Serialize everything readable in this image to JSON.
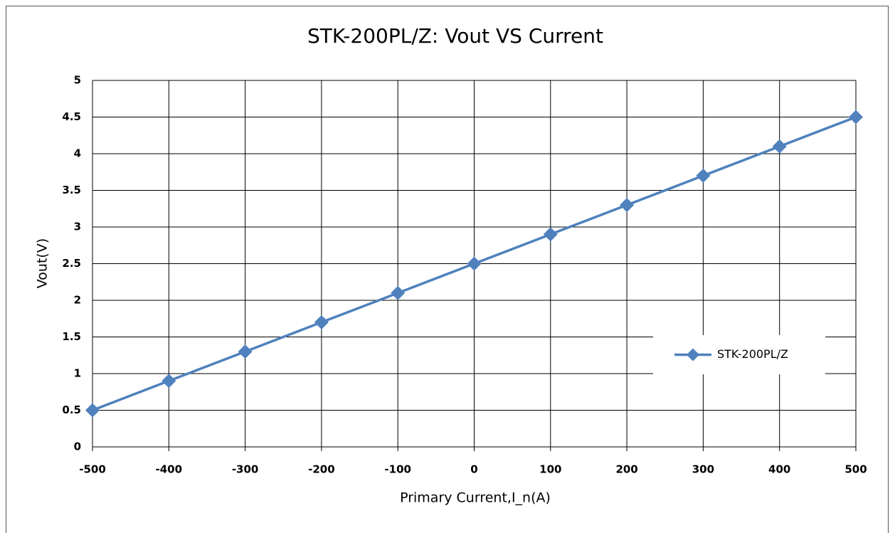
{
  "chart_data": {
    "type": "line",
    "title": "STK-200PL/Z:  Vout VS Current",
    "xlabel": "Primary Current,I_n(A)",
    "ylabel": "Vout(V)",
    "x": [
      -500,
      -400,
      -300,
      -200,
      -100,
      0,
      100,
      200,
      300,
      400,
      500
    ],
    "series": [
      {
        "name": "STK-200PL/Z",
        "color": "#4f81bd",
        "values": [
          0.5,
          0.9,
          1.3,
          1.7,
          2.1,
          2.5,
          2.9,
          3.3,
          3.7,
          4.1,
          4.5
        ]
      }
    ],
    "xlim": [
      -500,
      500
    ],
    "xticks": [
      -500,
      -400,
      -300,
      -200,
      -100,
      0,
      100,
      200,
      300,
      400,
      500
    ],
    "ylim": [
      0,
      5
    ],
    "yticks": [
      0,
      0.5,
      1,
      1.5,
      2,
      2.5,
      3,
      3.5,
      4,
      4.5,
      5
    ],
    "grid": true,
    "legend": "right",
    "marker": "diamond"
  }
}
